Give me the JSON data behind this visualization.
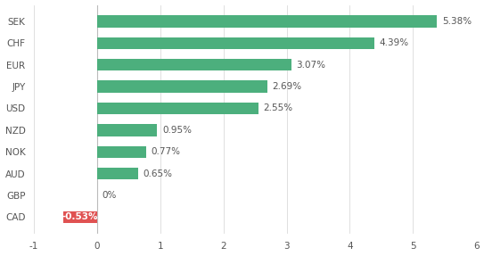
{
  "currencies": [
    "SEK",
    "CHF",
    "EUR",
    "JPY",
    "USD",
    "NZD",
    "NOK",
    "AUD",
    "GBP",
    "CAD"
  ],
  "values": [
    5.38,
    4.39,
    3.07,
    2.69,
    2.55,
    0.95,
    0.77,
    0.65,
    0.0,
    -0.53
  ],
  "labels": [
    "5.38%",
    "4.39%",
    "3.07%",
    "2.69%",
    "2.55%",
    "0.95%",
    "0.77%",
    "0.65%",
    "0%",
    "-0.53%"
  ],
  "bar_colors": [
    "#4caf7d",
    "#4caf7d",
    "#4caf7d",
    "#4caf7d",
    "#4caf7d",
    "#4caf7d",
    "#4caf7d",
    "#4caf7d",
    "#ffffff",
    "#e05252"
  ],
  "xlim": [
    -1,
    6
  ],
  "xticks": [
    -1,
    0,
    1,
    2,
    3,
    4,
    5,
    6
  ],
  "background_color": "#ffffff",
  "bar_height": 0.55,
  "label_fontsize": 7.5,
  "tick_fontsize": 7.5,
  "ylabel_fontsize": 7.5,
  "grid_color": "#e0e0e0",
  "text_color": "#555555",
  "neg_bar_color": "#e05252",
  "neg_text_color": "#ffffff"
}
